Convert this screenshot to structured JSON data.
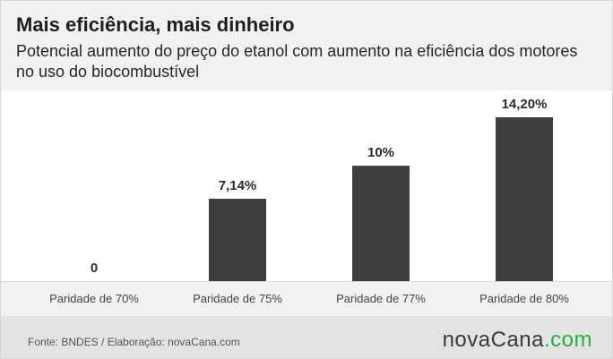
{
  "header": {
    "title": "Mais eficiência, mais dinheiro",
    "subtitle": "Potencial aumento do preço do etanol com aumento na  eficiência dos motores no uso do biocombustível"
  },
  "chart_data": {
    "type": "bar",
    "categories": [
      "Paridade de 70%",
      "Paridade de 75%",
      "Paridade de 77%",
      "Paridade de 80%"
    ],
    "values": [
      0,
      7.14,
      10,
      14.2
    ],
    "value_labels": [
      "0",
      "7,14%",
      "10%",
      "14,20%"
    ],
    "title": "Mais eficiência, mais dinheiro",
    "ylim": [
      0,
      14.2
    ],
    "grid": false,
    "legend": "none",
    "bar_color": "#3e3e3e"
  },
  "footer": {
    "source": "Fonte: BNDES / Elaboração: novaCana.com",
    "logo_main": "novaCana",
    "logo_suffix": ".com",
    "logo_accent_color": "#25b23a"
  }
}
